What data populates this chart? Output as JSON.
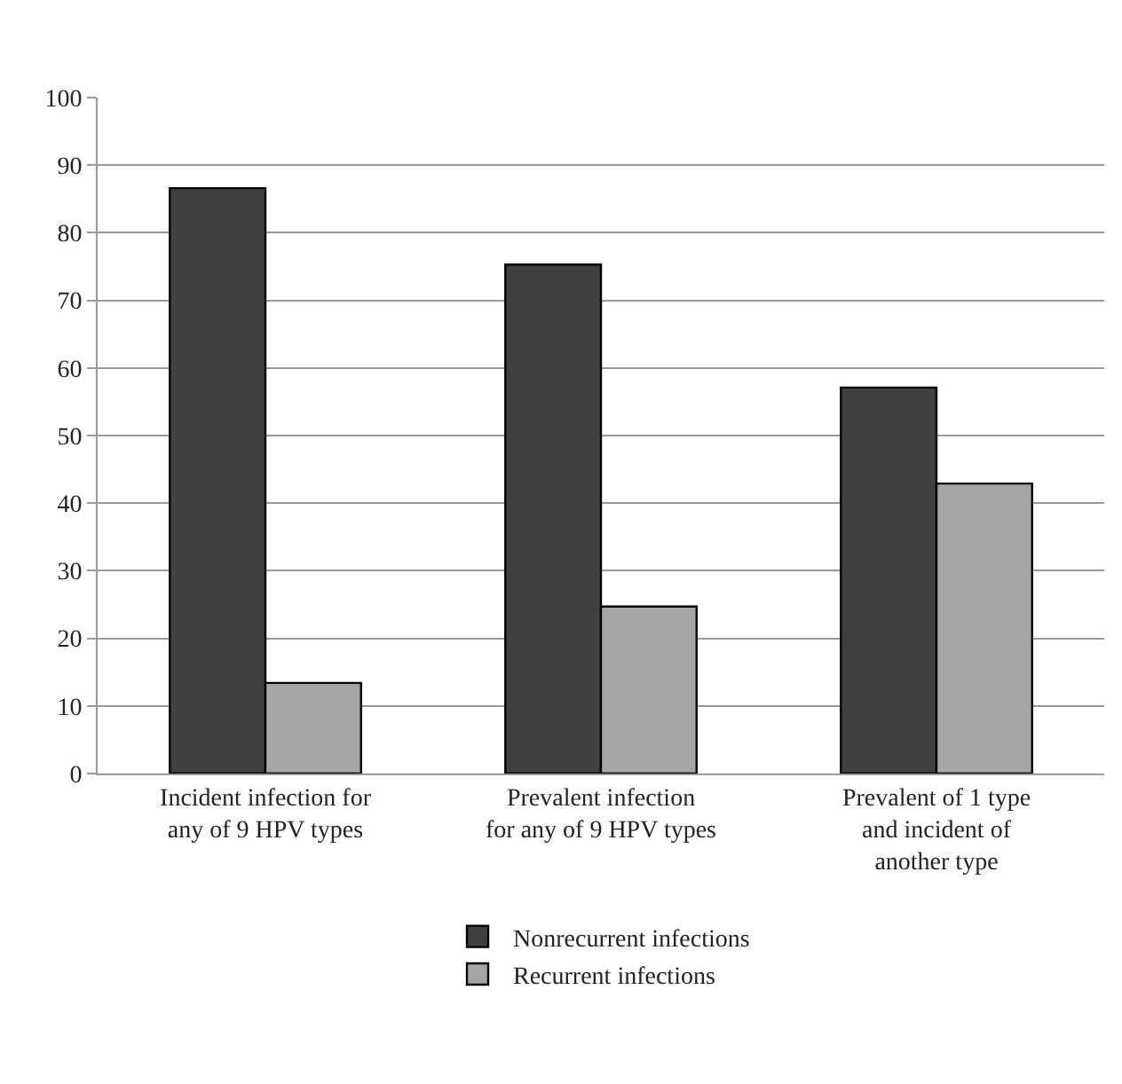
{
  "chart_data": {
    "type": "bar",
    "categories": [
      "Incident infection for any of 9 HPV types",
      "Prevalent infection for any of 9 HPV types",
      "Prevalent of 1 type and incident of another type"
    ],
    "series": [
      {
        "name": "Nonrecurrent infections",
        "color": "#404040",
        "values": [
          86.6,
          75.3,
          57.1
        ]
      },
      {
        "name": "Recurrent infections",
        "color": "#a6a6a6",
        "values": [
          13.4,
          24.7,
          42.9
        ]
      }
    ],
    "ylim": [
      0,
      100
    ],
    "yticks": [
      0,
      10,
      20,
      30,
      40,
      50,
      60,
      70,
      80,
      90,
      100
    ],
    "grid": "y",
    "legend": "bottom"
  }
}
